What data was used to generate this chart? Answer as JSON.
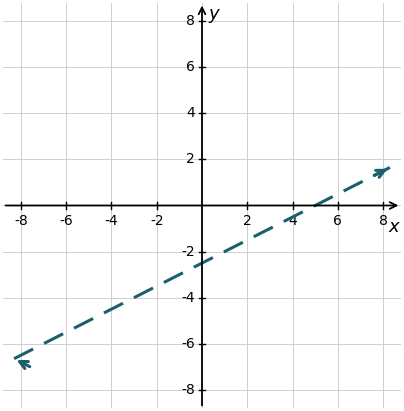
{
  "xlim": [
    -8.8,
    8.8
  ],
  "ylim": [
    -8.8,
    8.8
  ],
  "xticks": [
    -8,
    -6,
    -4,
    -2,
    2,
    4,
    6,
    8
  ],
  "yticks": [
    -8,
    -6,
    -4,
    -2,
    2,
    4,
    6,
    8
  ],
  "slope": 0.5,
  "intercept": -2.5,
  "x_start": -8.3,
  "x_end": 8.3,
  "line_color": "#1a5f6e",
  "line_width": 2.2,
  "dash_pattern": [
    7,
    4
  ],
  "xlabel": "x",
  "ylabel": "y",
  "grid_color": "#c8c8c8",
  "grid_linewidth": 0.6,
  "tick_fontsize": 10,
  "label_fontsize": 13,
  "figsize": [
    4.04,
    4.11
  ],
  "dpi": 100
}
